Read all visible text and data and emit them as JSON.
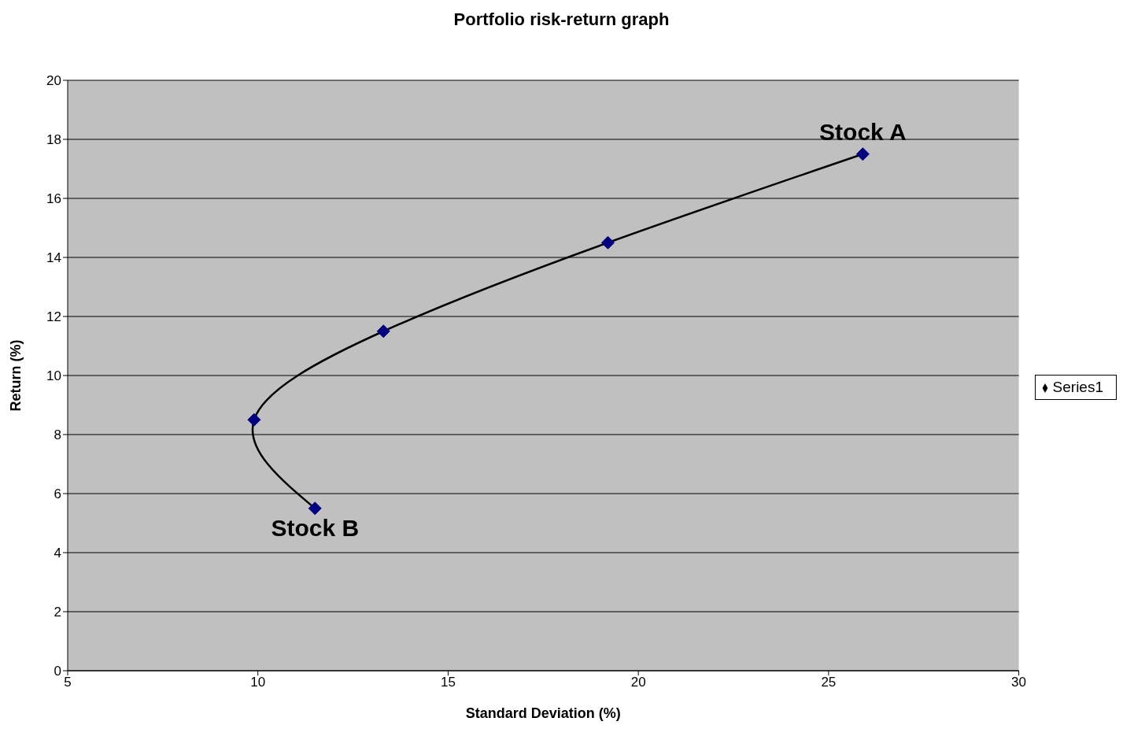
{
  "chart_data": {
    "type": "line",
    "title": "Portfolio risk-return graph",
    "xlabel": "Standard Deviation (%)",
    "ylabel": "Return (%)",
    "x": [
      11.5,
      9.9,
      13.3,
      19.2,
      25.9
    ],
    "series": [
      {
        "name": "Series1",
        "color": "#000080",
        "values": [
          5.5,
          8.5,
          11.5,
          14.5,
          17.5
        ]
      }
    ],
    "xlim": [
      5,
      30
    ],
    "xticks": [
      5,
      10,
      15,
      20,
      25,
      30
    ],
    "ylim": [
      0,
      20
    ],
    "yticks": [
      0,
      2,
      4,
      6,
      8,
      10,
      12,
      14,
      16,
      18,
      20
    ],
    "grid": "y",
    "legend": "right",
    "marker": "diamond",
    "line_style": "solid",
    "annotations": [
      {
        "text": "Stock A",
        "x": 25.9,
        "y": 17.5
      },
      {
        "text": "Stock B",
        "x": 11.5,
        "y": 5.5
      }
    ]
  }
}
